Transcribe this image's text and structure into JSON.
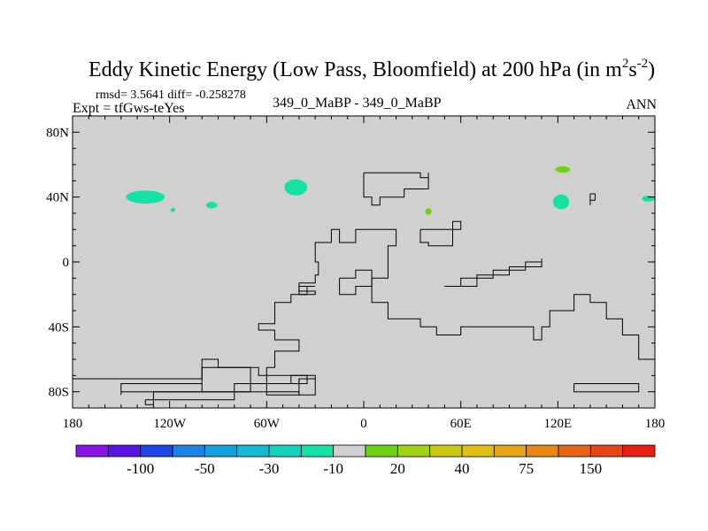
{
  "chart_data": {
    "type": "heatmap",
    "title": {
      "main": "Eddy Kinetic Energy (Low Pass, Bloomfield) at 200 hPa (in m",
      "sup1": "2",
      "mid": "s",
      "sup2": "-2",
      "end": ")"
    },
    "stats_text": "rmsd= 3.5641  diff= -0.258278",
    "left_label": "Expt = tfGws-teYes",
    "center_label": "349_0_MaBP - 349_0_MaBP",
    "right_label": "ANN",
    "xlim": [
      -180,
      180
    ],
    "ylim": [
      -90,
      90
    ],
    "x_ticks": [
      {
        "value": -180,
        "label": "180"
      },
      {
        "value": -120,
        "label": "120W"
      },
      {
        "value": -60,
        "label": "60W"
      },
      {
        "value": 0,
        "label": "0"
      },
      {
        "value": 60,
        "label": "60E"
      },
      {
        "value": 120,
        "label": "120E"
      },
      {
        "value": 180,
        "label": "180"
      }
    ],
    "y_ticks": [
      {
        "value": 80,
        "label": "80N"
      },
      {
        "value": 40,
        "label": "40N"
      },
      {
        "value": 0,
        "label": "0"
      },
      {
        "value": -40,
        "label": "40S"
      },
      {
        "value": -80,
        "label": "80S"
      }
    ],
    "background_color": "#d0d0d0",
    "coast_color": "#000000",
    "colorbar": {
      "colors": [
        "#8a14e6",
        "#5a14e6",
        "#1e46e6",
        "#1e82e6",
        "#14a0dc",
        "#14b9d2",
        "#14d2be",
        "#14e1a5",
        "#d0d0d0",
        "#6ed214",
        "#a0d214",
        "#c8c814",
        "#e1be14",
        "#e6a514",
        "#e68714",
        "#e66414",
        "#e64614",
        "#e61e14"
      ],
      "labels": [
        {
          "boundary": 2,
          "text": "-100"
        },
        {
          "boundary": 4,
          "text": "-50"
        },
        {
          "boundary": 6,
          "text": "-30"
        },
        {
          "boundary": 8,
          "text": "-10"
        },
        {
          "boundary": 10,
          "text": "20"
        },
        {
          "boundary": 12,
          "text": "40"
        },
        {
          "boundary": 14,
          "text": "75"
        },
        {
          "boundary": 16,
          "text": "150"
        }
      ]
    },
    "anomaly_patches": [
      {
        "lon": -135,
        "lat": 40,
        "rlon": 12,
        "rlat": 4,
        "color": "#14e1a5"
      },
      {
        "lon": -118,
        "lat": 32,
        "rlon": 1.5,
        "rlat": 1.2,
        "color": "#14e1a5"
      },
      {
        "lon": -94,
        "lat": 35,
        "rlon": 3.5,
        "rlat": 2,
        "color": "#14e1a5"
      },
      {
        "lon": -42,
        "lat": 46,
        "rlon": 7,
        "rlat": 5,
        "color": "#14e1a5"
      },
      {
        "lon": 40,
        "lat": 31,
        "rlon": 2,
        "rlat": 2,
        "color": "#6ed214"
      },
      {
        "lon": 123,
        "lat": 57,
        "rlon": 4.5,
        "rlat": 2,
        "color": "#6ed214"
      },
      {
        "lon": 122,
        "lat": 37,
        "rlon": 5,
        "rlat": 4.5,
        "color": "#14e1a5"
      },
      {
        "lon": 176,
        "lat": 39,
        "rlon": 4,
        "rlat": 1.8,
        "color": "#14e1a5"
      }
    ],
    "coastlines": [
      [
        [
          -180,
          -72
        ],
        [
          -100,
          -60
        ],
        [
          -90,
          -65
        ],
        [
          -65,
          -70
        ],
        [
          -60,
          -82
        ],
        [
          -40,
          -72
        ],
        [
          -30,
          -72
        ],
        [
          -30,
          -70
        ],
        [
          -60,
          -65
        ],
        [
          -55,
          -55
        ],
        [
          -40,
          -48
        ],
        [
          -55,
          -42
        ],
        [
          -65,
          -38
        ],
        [
          -55,
          -25
        ],
        [
          -45,
          -20
        ],
        [
          -30,
          -18
        ],
        [
          -40,
          -13
        ],
        [
          -30,
          -8
        ],
        [
          -28,
          0
        ],
        [
          -30,
          12
        ],
        [
          -20,
          20
        ],
        [
          -15,
          12
        ],
        [
          -5,
          20
        ],
        [
          15,
          20
        ],
        [
          20,
          10
        ],
        [
          15,
          -10
        ],
        [
          5,
          -25
        ],
        [
          15,
          -35
        ],
        [
          35,
          -40
        ],
        [
          45,
          -45
        ],
        [
          60,
          -40
        ],
        [
          75,
          -40
        ],
        [
          105,
          -48
        ],
        [
          110,
          -40
        ],
        [
          115,
          -30
        ],
        [
          130,
          -20
        ],
        [
          140,
          -25
        ],
        [
          150,
          -35
        ],
        [
          160,
          -45
        ],
        [
          170,
          -60
        ],
        [
          180,
          -70
        ]
      ],
      [
        [
          -150,
          -80
        ],
        [
          -100,
          -65
        ],
        [
          -85,
          -65
        ],
        [
          -70,
          -75
        ],
        [
          -40,
          -72
        ],
        [
          -30,
          -82
        ],
        [
          -40,
          -80
        ],
        [
          -100,
          -75
        ],
        [
          -150,
          -82
        ],
        [
          -150,
          -80
        ]
      ],
      [
        [
          -135,
          -85
        ],
        [
          -80,
          -75
        ],
        [
          -45,
          -70
        ],
        [
          -35,
          -75
        ],
        [
          -70,
          -80
        ],
        [
          -130,
          -88
        ],
        [
          -135,
          -85
        ]
      ],
      [
        [
          0,
          55
        ],
        [
          15,
          55
        ],
        [
          35,
          52
        ],
        [
          40,
          55
        ],
        [
          40,
          45
        ],
        [
          25,
          40
        ],
        [
          10,
          35
        ],
        [
          5,
          40
        ],
        [
          0,
          50
        ],
        [
          0,
          55
        ]
      ],
      [
        [
          35,
          20
        ],
        [
          50,
          20
        ],
        [
          60,
          25
        ],
        [
          55,
          10
        ],
        [
          40,
          12
        ],
        [
          35,
          20
        ]
      ],
      [
        [
          50,
          -15
        ],
        [
          60,
          -10
        ],
        [
          80,
          -5
        ],
        [
          100,
          0
        ],
        [
          110,
          2
        ],
        [
          110,
          -3
        ],
        [
          90,
          -8
        ],
        [
          70,
          -15
        ],
        [
          50,
          -15
        ]
      ],
      [
        [
          130,
          -75
        ],
        [
          150,
          -75
        ],
        [
          170,
          -80
        ],
        [
          145,
          -80
        ],
        [
          130,
          -75
        ]
      ],
      [
        [
          -15,
          -10
        ],
        [
          -5,
          -5
        ],
        [
          5,
          -15
        ],
        [
          -5,
          -20
        ],
        [
          -15,
          -10
        ]
      ],
      [
        [
          -40,
          -15
        ],
        [
          -30,
          -15
        ],
        [
          -35,
          -20
        ],
        [
          -40,
          -15
        ]
      ],
      [
        [
          140,
          42
        ],
        [
          143,
          38
        ],
        [
          140,
          35
        ],
        [
          140,
          42
        ]
      ]
    ]
  }
}
